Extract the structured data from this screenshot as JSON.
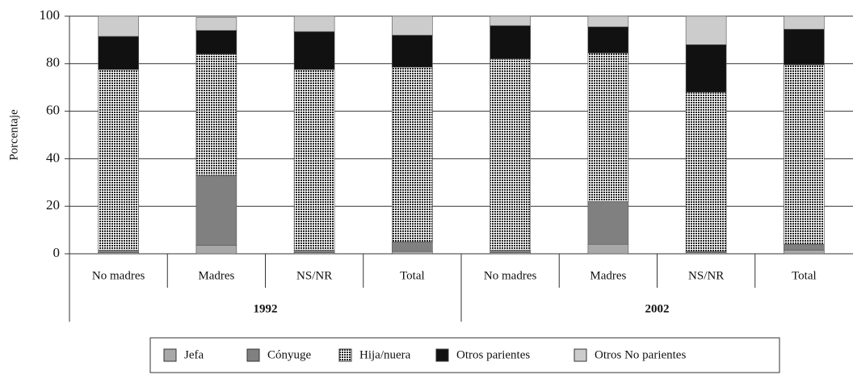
{
  "chart_data": {
    "type": "stacked_bar",
    "y_label": "Porcentaje",
    "categories": [
      "No madres",
      "Madres",
      "NS/NR",
      "Total",
      "No madres",
      "Madres",
      "NS/NR",
      "Total"
    ],
    "groups": [
      "1992",
      "2002"
    ],
    "ylim": [
      0,
      100
    ],
    "yticks": [
      0,
      20,
      40,
      60,
      80,
      100
    ],
    "grid": true,
    "legend": "bottom",
    "series": [
      {
        "name": "Jefa",
        "color": "#a8a8a8",
        "values": [
          0.5,
          3.5,
          0.5,
          1,
          0.5,
          4,
          0.5,
          1.5
        ]
      },
      {
        "name": "Cónyuge",
        "color": "#808080",
        "values": [
          1,
          29.5,
          1,
          4,
          1,
          18,
          0.5,
          2.5
        ]
      },
      {
        "name": "Hija/nuera",
        "color": "#222222",
        "pattern": "dots",
        "values": [
          76,
          51,
          76,
          73.5,
          80.5,
          62.5,
          67,
          75.5
        ]
      },
      {
        "name": "Otros parientes",
        "color": "#111111",
        "values": [
          14,
          10,
          16,
          13.5,
          14,
          11,
          20,
          15
        ]
      },
      {
        "name": "Otros No parientes",
        "color": "#cccccc",
        "values": [
          8.5,
          5.5,
          6.5,
          8,
          4,
          4.5,
          12,
          5.5
        ]
      }
    ]
  }
}
